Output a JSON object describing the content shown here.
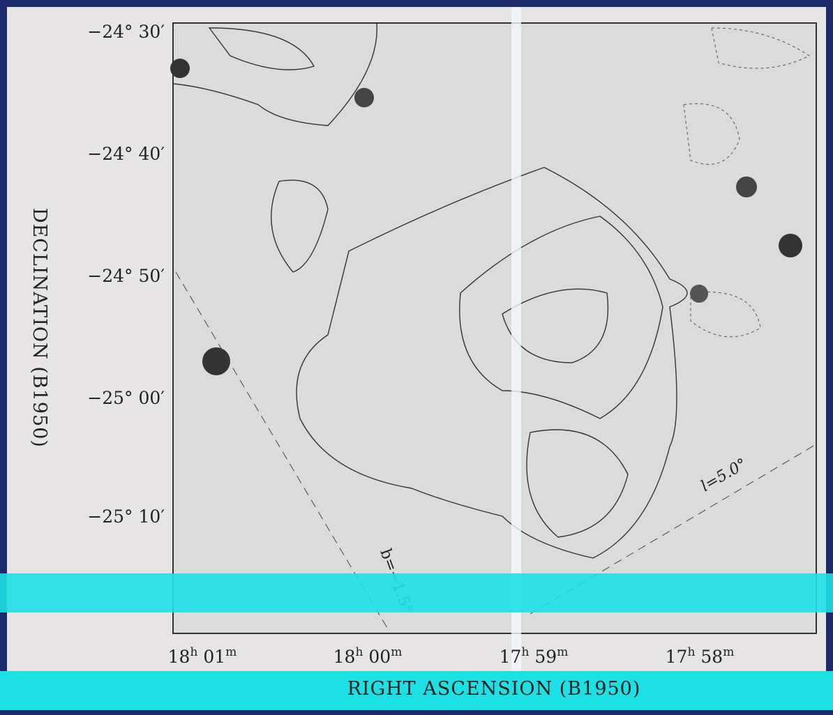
{
  "figure": {
    "y_axis": {
      "title": "DECLINATION (B1950)",
      "ticks": [
        "−24° 30′",
        "−24° 40′",
        "−24° 50′",
        "−25° 00′",
        "−25° 10′"
      ]
    },
    "x_axis": {
      "title": "RIGHT ASCENSION (B1950)",
      "hour_unit": "h",
      "minute_unit": "m",
      "ticks": [
        {
          "hours": "18",
          "minutes": "01"
        },
        {
          "hours": "18",
          "minutes": "00"
        },
        {
          "hours": "17",
          "minutes": "59"
        },
        {
          "hours": "17",
          "minutes": "58"
        }
      ]
    },
    "annotations": {
      "latitude": "b=−1.5°",
      "longitude": "l=5.0°"
    }
  }
}
